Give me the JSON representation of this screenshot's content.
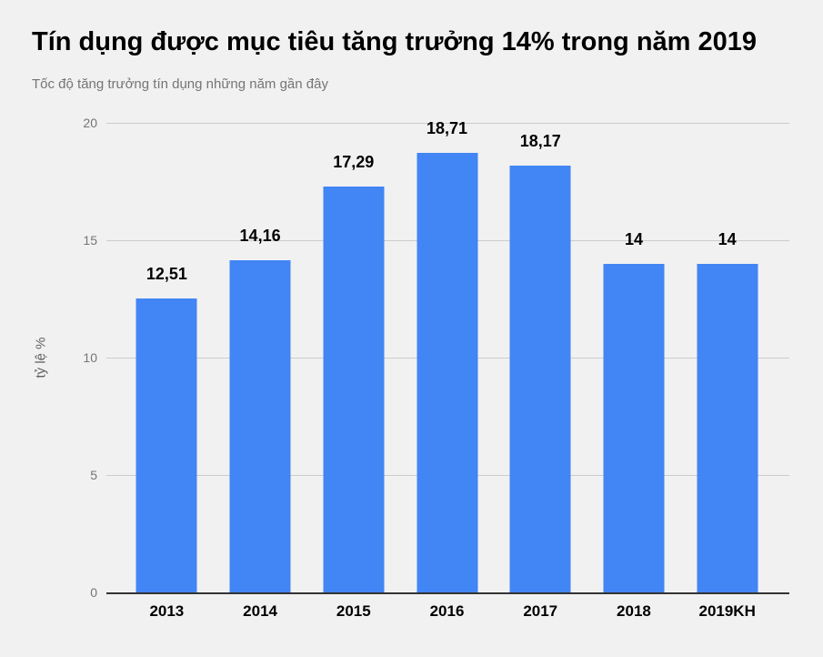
{
  "header": {
    "title": "Tín dụng được mục tiêu tăng trưởng 14% trong năm 2019",
    "subtitle": "Tốc độ tăng trưởng tín dụng những năm gần đây"
  },
  "chart_data": {
    "type": "bar",
    "title": "Tín dụng được mục tiêu tăng trưởng 14% trong năm 2019",
    "subtitle": "Tốc độ tăng trưởng tín dụng những năm gần đây",
    "categories": [
      "2013",
      "2014",
      "2015",
      "2016",
      "2017",
      "2018",
      "2019KH"
    ],
    "values": [
      12.51,
      14.16,
      17.29,
      18.71,
      18.17,
      14,
      14
    ],
    "value_labels": [
      "12,51",
      "14,16",
      "17,29",
      "18,71",
      "18,17",
      "14",
      "14"
    ],
    "xlabel": "",
    "ylabel": "tỷ lệ %",
    "ylim": [
      0,
      20
    ],
    "yticks": [
      0,
      5,
      10,
      15,
      20
    ],
    "ytick_labels": [
      "0",
      "5",
      "10",
      "15",
      "20"
    ],
    "grid": true,
    "legend_position": "none",
    "colors": {
      "bar": "#4285f4",
      "background": "#f1f1f2",
      "gridline": "#cccccc",
      "axis_line": "#333333",
      "title_text": "#000000",
      "subtitle_text": "#757575",
      "tick_text": "#757575"
    }
  }
}
